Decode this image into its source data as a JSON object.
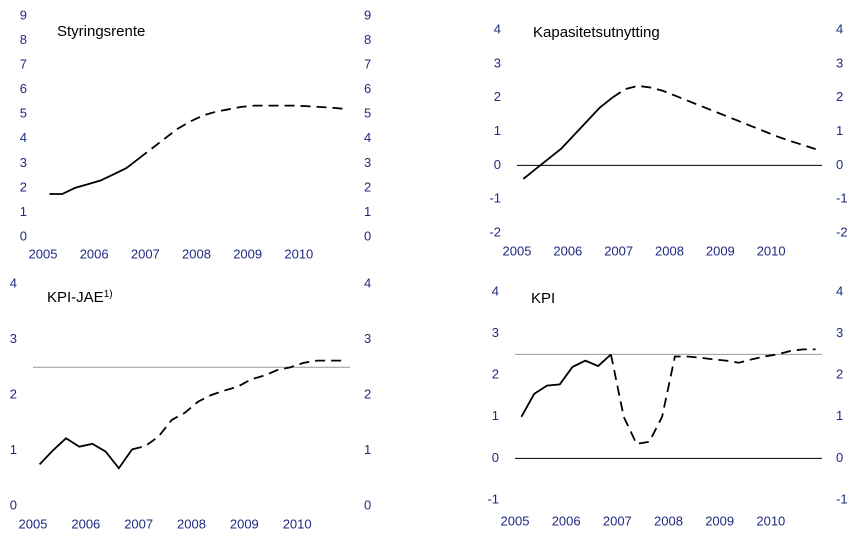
{
  "chart_data": [
    {
      "type": "line",
      "title": "Styringsrente",
      "x": [
        2005.125,
        2005.375,
        2005.625,
        2005.875,
        2006.125,
        2006.375,
        2006.625,
        2006.875,
        2007.125,
        2007.375,
        2007.625,
        2007.875,
        2008.125,
        2008.375,
        2008.625,
        2008.875,
        2009.125,
        2009.375,
        2009.625,
        2009.875,
        2010.125,
        2010.375,
        2010.625,
        2010.875
      ],
      "series": [
        {
          "color": "#000000",
          "dash": false,
          "values": [
            1.75,
            1.75,
            2.0,
            2.15,
            2.3,
            2.55,
            2.8,
            3.2,
            null,
            null,
            null,
            null,
            null,
            null,
            null,
            null,
            null,
            null,
            null,
            null,
            null,
            null,
            null,
            null
          ]
        },
        {
          "color": "#000000",
          "dash": true,
          "values": [
            null,
            null,
            null,
            null,
            null,
            null,
            null,
            3.2,
            3.6,
            4.0,
            4.4,
            4.7,
            4.95,
            5.1,
            5.2,
            5.3,
            5.35,
            5.35,
            5.35,
            5.35,
            5.33,
            5.3,
            5.27,
            5.22
          ]
        }
      ],
      "xlim": [
        2005,
        2011
      ],
      "xticks": [
        2005,
        2006,
        2007,
        2008,
        2009,
        2010
      ],
      "ylim": [
        0,
        9
      ],
      "yticks": [
        0,
        1,
        2,
        3,
        4,
        5,
        6,
        7,
        8,
        9
      ],
      "right_axis_labels": true,
      "reference_lines": []
    },
    {
      "type": "line",
      "title": "Kapasitetsutnytting",
      "x": [
        2005.125,
        2005.375,
        2005.625,
        2005.875,
        2006.125,
        2006.375,
        2006.625,
        2006.875,
        2007.125,
        2007.375,
        2007.625,
        2007.875,
        2008.125,
        2008.375,
        2008.625,
        2008.875,
        2009.125,
        2009.375,
        2009.625,
        2009.875,
        2010.125,
        2010.375,
        2010.625,
        2010.875
      ],
      "series": [
        {
          "color": "#000000",
          "dash": false,
          "values": [
            -0.4,
            -0.1,
            0.2,
            0.5,
            0.9,
            1.3,
            1.7,
            2.0,
            null,
            null,
            null,
            null,
            null,
            null,
            null,
            null,
            null,
            null,
            null,
            null,
            null,
            null,
            null,
            null
          ]
        },
        {
          "color": "#000000",
          "dash": true,
          "values": [
            null,
            null,
            null,
            null,
            null,
            null,
            null,
            2.0,
            2.25,
            2.35,
            2.3,
            2.2,
            2.05,
            1.9,
            1.75,
            1.6,
            1.45,
            1.3,
            1.15,
            1.0,
            0.85,
            0.72,
            0.6,
            0.48
          ]
        }
      ],
      "xlim": [
        2005,
        2011
      ],
      "xticks": [
        2005,
        2006,
        2007,
        2008,
        2009,
        2010
      ],
      "ylim": [
        -2,
        4
      ],
      "yticks": [
        -2,
        -1,
        0,
        1,
        2,
        3,
        4
      ],
      "right_axis_labels": true,
      "reference_lines": [
        {
          "value": 0,
          "color": "#000000"
        }
      ]
    },
    {
      "type": "line",
      "title": "KPI-JAE",
      "title_superscript": "1)",
      "x": [
        2005.125,
        2005.375,
        2005.625,
        2005.875,
        2006.125,
        2006.375,
        2006.625,
        2006.875,
        2007.125,
        2007.375,
        2007.625,
        2007.875,
        2008.125,
        2008.375,
        2008.625,
        2008.875,
        2009.125,
        2009.375,
        2009.625,
        2009.875,
        2010.125,
        2010.375,
        2010.625,
        2010.875
      ],
      "series": [
        {
          "color": "#000000",
          "dash": false,
          "values": [
            0.75,
            1.0,
            1.22,
            1.07,
            1.12,
            0.98,
            0.68,
            1.02,
            null,
            null,
            null,
            null,
            null,
            null,
            null,
            null,
            null,
            null,
            null,
            null,
            null,
            null,
            null,
            null
          ]
        },
        {
          "color": "#000000",
          "dash": true,
          "values": [
            null,
            null,
            null,
            null,
            null,
            null,
            null,
            1.02,
            1.08,
            1.25,
            1.55,
            1.68,
            1.88,
            2.0,
            2.08,
            2.15,
            2.28,
            2.35,
            2.45,
            2.5,
            2.58,
            2.62,
            2.62,
            2.62
          ]
        }
      ],
      "xlim": [
        2005,
        2011
      ],
      "xticks": [
        2005,
        2006,
        2007,
        2008,
        2009,
        2010
      ],
      "ylim": [
        0,
        4
      ],
      "yticks": [
        0,
        1,
        2,
        3,
        4
      ],
      "right_axis_labels": true,
      "reference_lines": [
        {
          "value": 2.5,
          "color": "#999999"
        }
      ]
    },
    {
      "type": "line",
      "title": "KPI",
      "x": [
        2005.125,
        2005.375,
        2005.625,
        2005.875,
        2006.125,
        2006.375,
        2006.625,
        2006.875,
        2007.125,
        2007.375,
        2007.625,
        2007.875,
        2008.125,
        2008.375,
        2008.625,
        2008.875,
        2009.125,
        2009.375,
        2009.625,
        2009.875,
        2010.125,
        2010.375,
        2010.625,
        2010.875
      ],
      "series": [
        {
          "color": "#000000",
          "dash": false,
          "values": [
            1.0,
            1.55,
            1.75,
            1.78,
            2.2,
            2.35,
            2.22,
            2.5,
            null,
            null,
            null,
            null,
            null,
            null,
            null,
            null,
            null,
            null,
            null,
            null,
            null,
            null,
            null,
            null
          ]
        },
        {
          "color": "#000000",
          "dash": true,
          "values": [
            null,
            null,
            null,
            null,
            null,
            null,
            null,
            2.5,
            1.0,
            0.35,
            0.4,
            1.0,
            2.45,
            2.45,
            2.42,
            2.38,
            2.35,
            2.3,
            2.38,
            2.45,
            2.5,
            2.58,
            2.62,
            2.62
          ]
        }
      ],
      "xlim": [
        2005,
        2011
      ],
      "xticks": [
        2005,
        2006,
        2007,
        2008,
        2009,
        2010
      ],
      "ylim": [
        -1,
        4
      ],
      "yticks": [
        -1,
        0,
        1,
        2,
        3,
        4
      ],
      "right_axis_labels": true,
      "reference_lines": [
        {
          "value": 2.5,
          "color": "#999999"
        },
        {
          "value": 0,
          "color": "#000000"
        }
      ]
    }
  ]
}
